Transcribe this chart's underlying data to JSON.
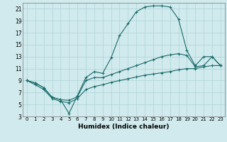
{
  "xlabel": "Humidex (Indice chaleur)",
  "bg_color": "#d0eaed",
  "line_color": "#1a6b6b",
  "xlim": [
    -0.5,
    23.5
  ],
  "ylim": [
    3,
    22
  ],
  "xticks": [
    0,
    1,
    2,
    3,
    4,
    5,
    6,
    7,
    8,
    9,
    10,
    11,
    12,
    13,
    14,
    15,
    16,
    17,
    18,
    19,
    20,
    21,
    22,
    23
  ],
  "yticks": [
    3,
    5,
    7,
    9,
    11,
    13,
    15,
    17,
    19,
    21
  ],
  "grid_color": "#aed4d8",
  "curve1_x": [
    0,
    1,
    2,
    3,
    4,
    5,
    6,
    7,
    8,
    9,
    10,
    11,
    12,
    13,
    14,
    15,
    16,
    17,
    18,
    19,
    20,
    21,
    22,
    23
  ],
  "curve1_y": [
    9.0,
    8.6,
    7.8,
    6.2,
    5.8,
    3.5,
    6.5,
    9.5,
    10.5,
    10.2,
    12.8,
    16.5,
    18.5,
    20.5,
    21.3,
    21.5,
    21.5,
    21.3,
    19.3,
    14.0,
    11.5,
    13.0,
    13.0,
    11.5
  ],
  "curve2_x": [
    0,
    1,
    2,
    3,
    4,
    5,
    6,
    7,
    8,
    9,
    10,
    11,
    12,
    13,
    14,
    15,
    16,
    17,
    18,
    19,
    20,
    21,
    22,
    23
  ],
  "curve2_y": [
    9.0,
    8.6,
    7.8,
    6.2,
    5.8,
    5.7,
    6.3,
    9.0,
    9.5,
    9.5,
    10.0,
    10.5,
    11.0,
    11.5,
    12.0,
    12.5,
    13.0,
    13.3,
    13.5,
    13.2,
    11.3,
    11.5,
    13.0,
    11.5
  ],
  "curve3_x": [
    0,
    1,
    2,
    3,
    4,
    5,
    6,
    7,
    8,
    9,
    10,
    11,
    12,
    13,
    14,
    15,
    16,
    17,
    18,
    19,
    20,
    21,
    22,
    23
  ],
  "curve3_y": [
    9.0,
    8.3,
    7.5,
    6.0,
    5.5,
    5.3,
    6.0,
    7.5,
    8.0,
    8.3,
    8.7,
    9.0,
    9.3,
    9.6,
    9.9,
    10.1,
    10.3,
    10.5,
    10.8,
    11.0,
    11.0,
    11.3,
    11.5,
    11.5
  ]
}
